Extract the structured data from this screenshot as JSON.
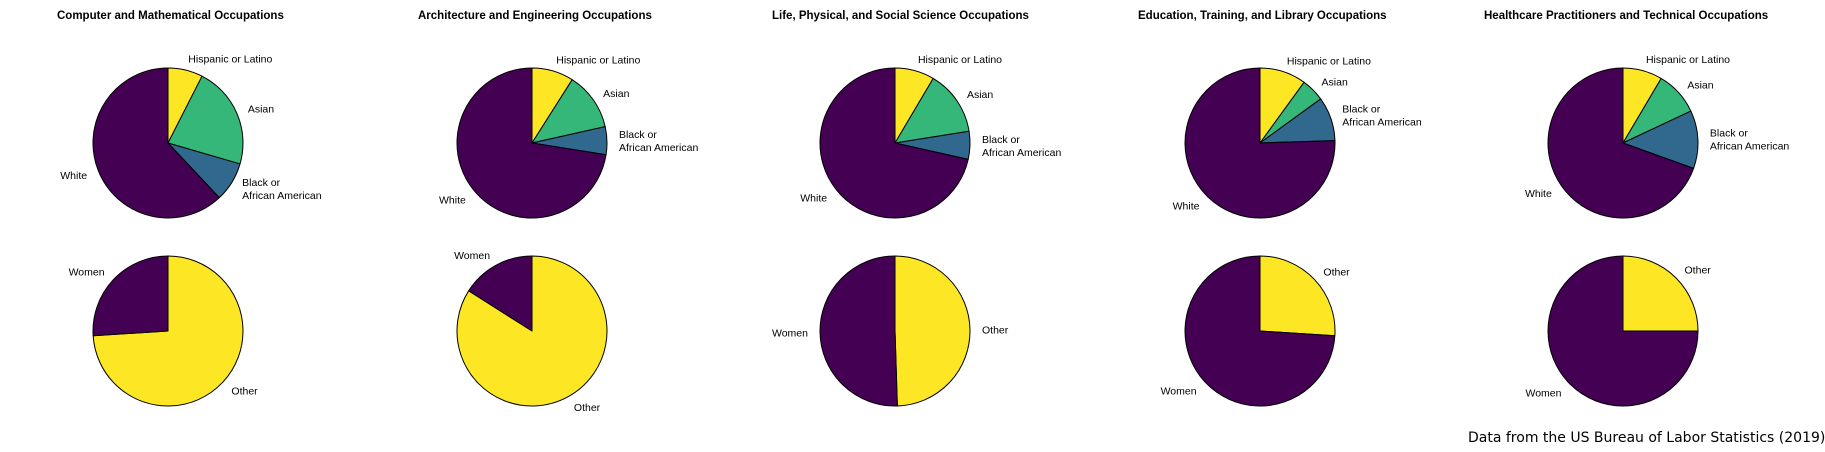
{
  "footer": {
    "source": "Data from the US Bureau of Labor Statistics (2019)"
  },
  "colors": {
    "White": "#440154",
    "Black or African American": "#31688e",
    "Asian": "#35b779",
    "Hispanic or Latino": "#fde725",
    "Women": "#440154",
    "Other": "#fde725"
  },
  "chart_data": [
    {
      "type": "pie",
      "title": "Computer and Mathematical Occupations",
      "race": [
        {
          "label": "Hispanic or Latino",
          "value": 7.5
        },
        {
          "label": "Asian",
          "value": 22.0
        },
        {
          "label": "Black or\nAfrican American",
          "value": 8.5,
          "key": "Black or African American"
        },
        {
          "label": "White",
          "value": 62.0
        }
      ],
      "gender": [
        {
          "label": "Other",
          "value": 74.0
        },
        {
          "label": "Women",
          "value": 26.0
        }
      ]
    },
    {
      "type": "pie",
      "title": "Architecture and Engineering Occupations",
      "race": [
        {
          "label": "Hispanic or Latino",
          "value": 9.0
        },
        {
          "label": "Asian",
          "value": 12.5
        },
        {
          "label": "Black or\nAfrican American",
          "value": 6.0,
          "key": "Black or African American"
        },
        {
          "label": "White",
          "value": 72.5
        }
      ],
      "gender": [
        {
          "label": "Other",
          "value": 84.0
        },
        {
          "label": "Women",
          "value": 16.0
        }
      ]
    },
    {
      "type": "pie",
      "title": "Life, Physical, and Social Science Occupations",
      "race": [
        {
          "label": "Hispanic or Latino",
          "value": 8.5
        },
        {
          "label": "Asian",
          "value": 14.0
        },
        {
          "label": "Black or\nAfrican American",
          "value": 6.0,
          "key": "Black or African American"
        },
        {
          "label": "White",
          "value": 71.5
        }
      ],
      "gender": [
        {
          "label": "Other",
          "value": 49.5
        },
        {
          "label": "Women",
          "value": 50.5
        }
      ]
    },
    {
      "type": "pie",
      "title": "Education, Training, and Library Occupations",
      "race": [
        {
          "label": "Hispanic or Latino",
          "value": 10.0
        },
        {
          "label": "Asian",
          "value": 5.0
        },
        {
          "label": "Black or\nAfrican American",
          "value": 9.5,
          "key": "Black or African American"
        },
        {
          "label": "White",
          "value": 75.5
        }
      ],
      "gender": [
        {
          "label": "Other",
          "value": 26.0
        },
        {
          "label": "Women",
          "value": 74.0
        }
      ]
    },
    {
      "type": "pie",
      "title": "Healthcare Practitioners and Technical Occupations",
      "race": [
        {
          "label": "Hispanic or Latino",
          "value": 8.5
        },
        {
          "label": "Asian",
          "value": 9.5
        },
        {
          "label": "Black or\nAfrican American",
          "value": 12.5,
          "key": "Black or African American"
        },
        {
          "label": "White",
          "value": 69.5
        }
      ],
      "gender": [
        {
          "label": "Other",
          "value": 25.0
        },
        {
          "label": "Women",
          "value": 75.0
        }
      ]
    }
  ]
}
